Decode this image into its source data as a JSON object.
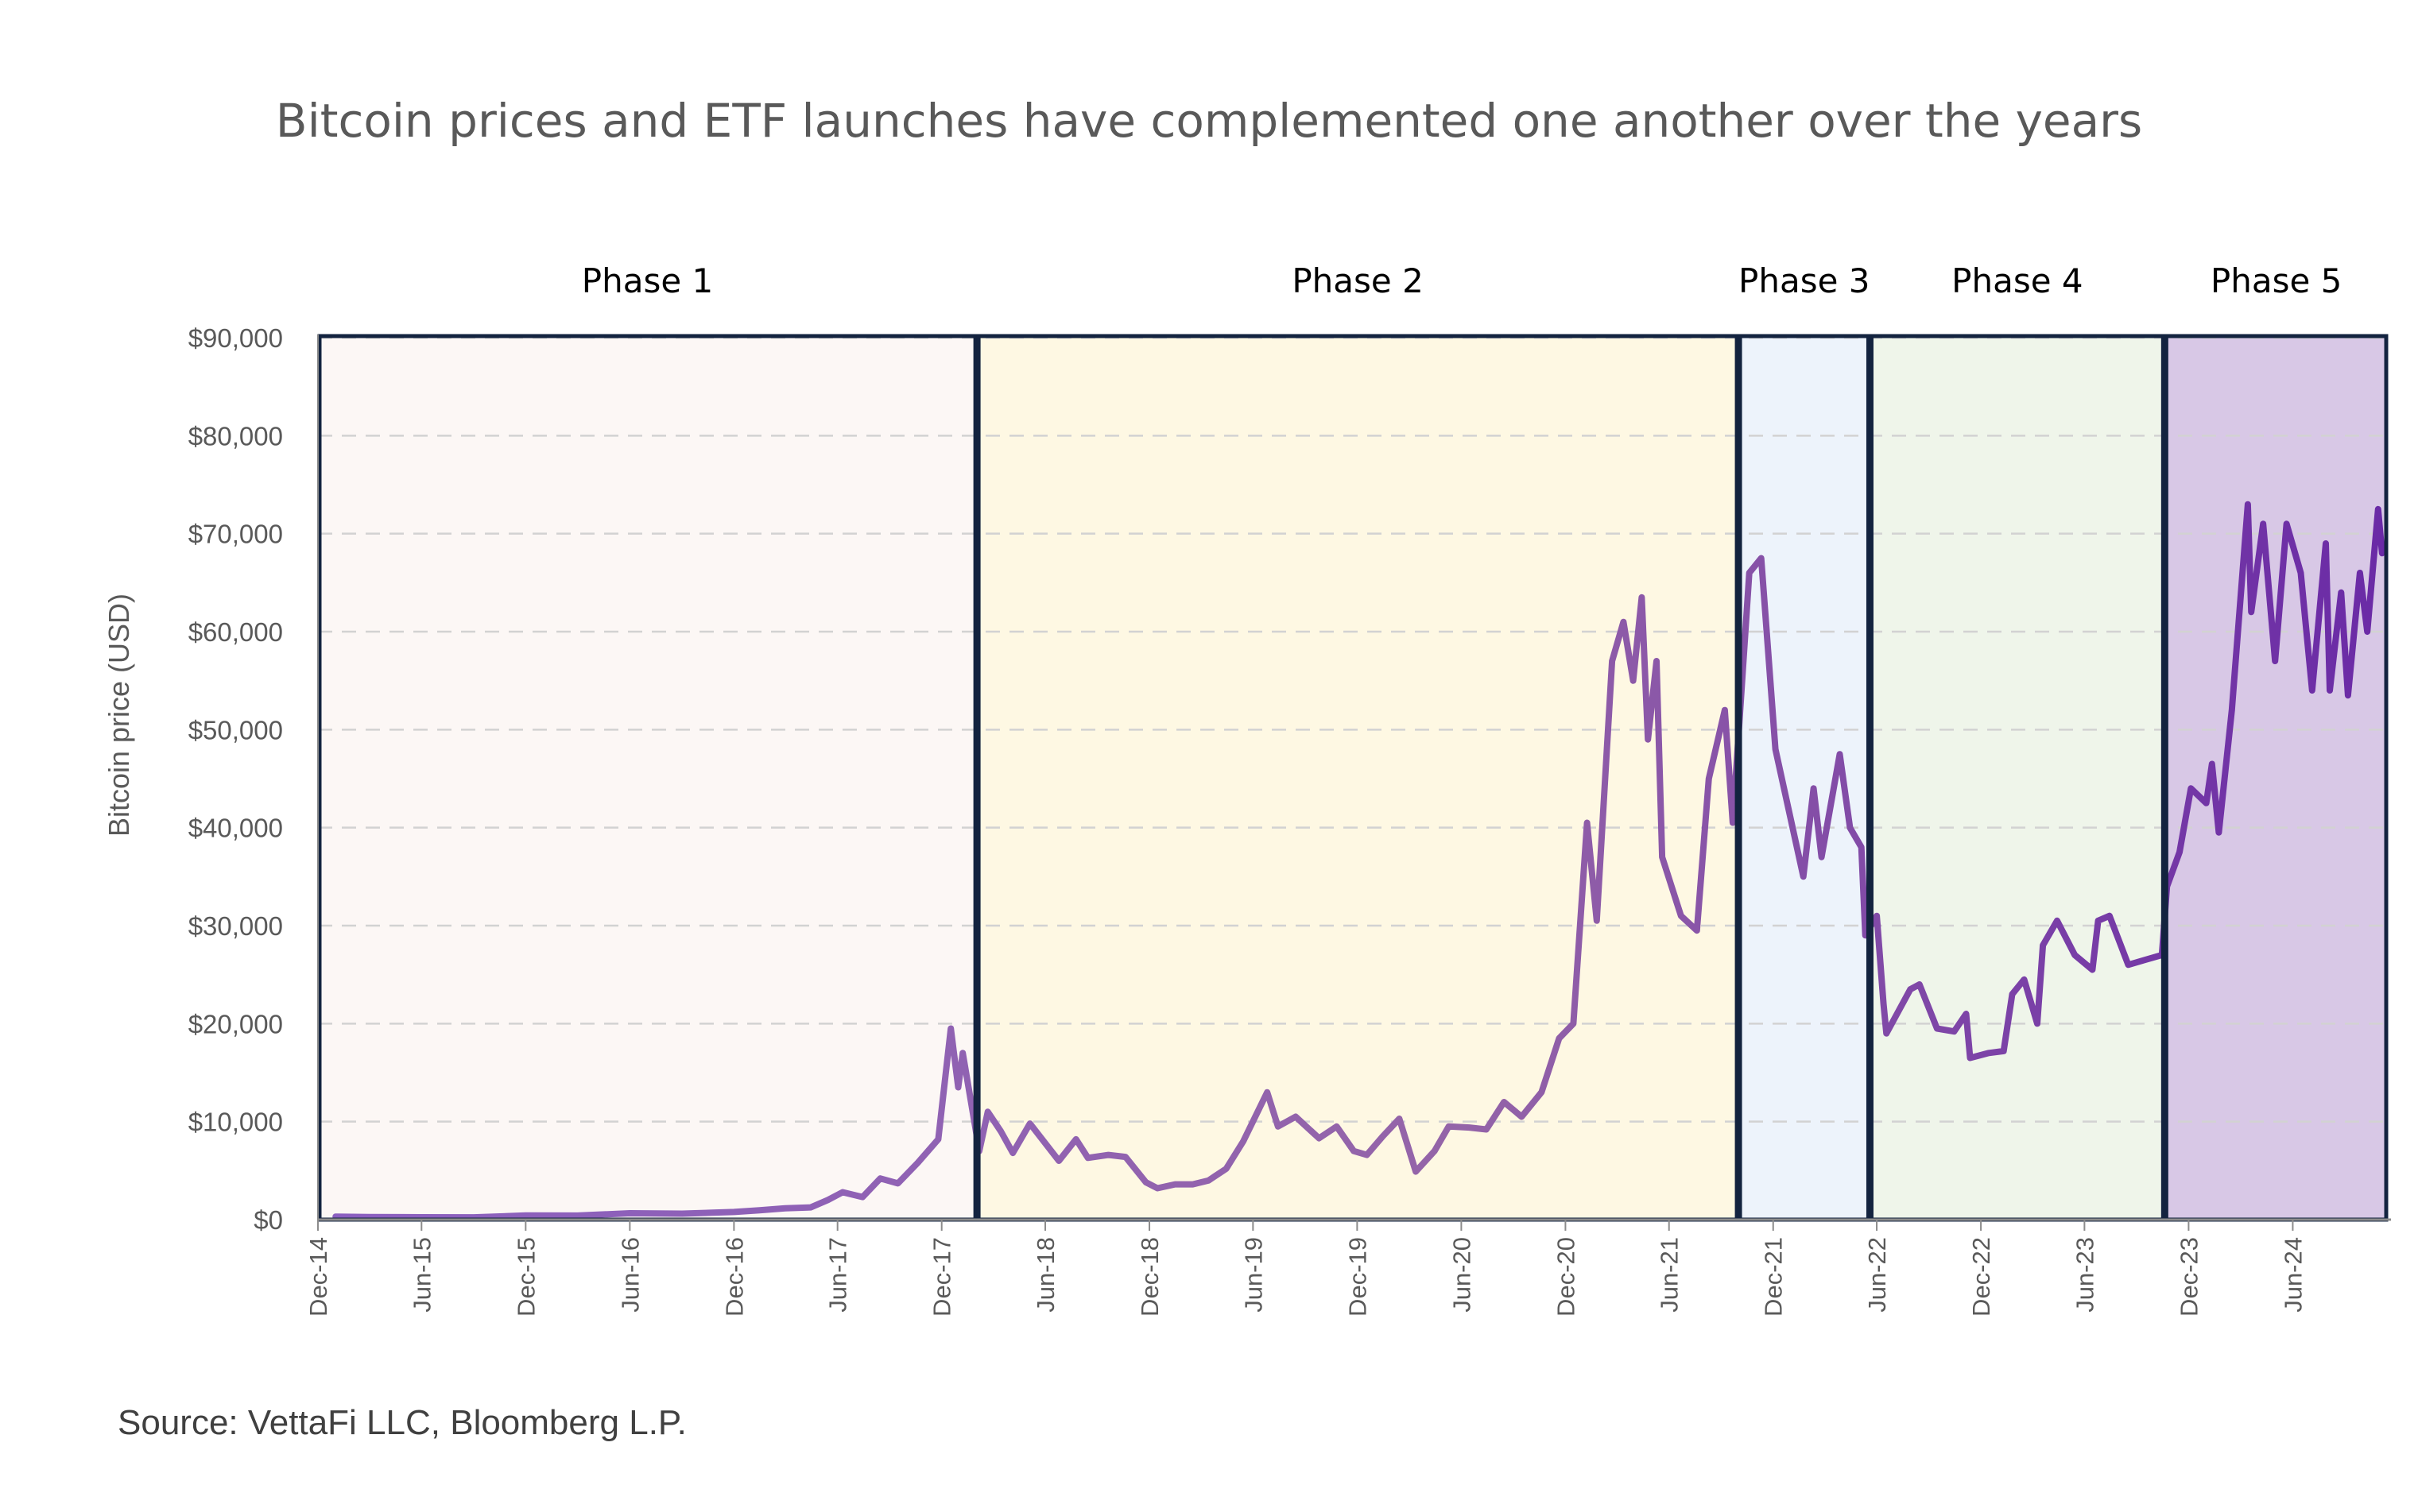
{
  "chart_data": {
    "type": "line",
    "title": "Bitcoin prices and ETF launches have complemented one another over the years",
    "ylabel": "Bitcoin price (USD)",
    "xlabel": "",
    "source": "Source: VettaFi LLC, Bloomberg L.P.",
    "ylim": [
      0,
      90000
    ],
    "xlim": [
      "2014-12-01",
      "2024-11-15"
    ],
    "grid": "horizontal-dashed",
    "y_ticks": [
      "$0",
      "$10,000",
      "$20,000",
      "$30,000",
      "$40,000",
      "$50,000",
      "$60,000",
      "$70,000",
      "$80,000",
      "$90,000"
    ],
    "x_ticks": [
      {
        "date": "2014-12-01",
        "label": "Dec-14"
      },
      {
        "date": "2015-06-01",
        "label": "Jun-15"
      },
      {
        "date": "2015-12-01",
        "label": "Dec-15"
      },
      {
        "date": "2016-06-01",
        "label": "Jun-16"
      },
      {
        "date": "2016-12-01",
        "label": "Dec-16"
      },
      {
        "date": "2017-06-01",
        "label": "Jun-17"
      },
      {
        "date": "2017-12-01",
        "label": "Dec-17"
      },
      {
        "date": "2018-06-01",
        "label": "Jun-18"
      },
      {
        "date": "2018-12-01",
        "label": "Dec-18"
      },
      {
        "date": "2019-06-01",
        "label": "Jun-19"
      },
      {
        "date": "2019-12-01",
        "label": "Dec-19"
      },
      {
        "date": "2020-06-01",
        "label": "Jun-20"
      },
      {
        "date": "2020-12-01",
        "label": "Dec-20"
      },
      {
        "date": "2021-06-01",
        "label": "Jun-21"
      },
      {
        "date": "2021-12-01",
        "label": "Dec-21"
      },
      {
        "date": "2022-06-01",
        "label": "Jun-22"
      },
      {
        "date": "2022-12-01",
        "label": "Dec-22"
      },
      {
        "date": "2023-06-01",
        "label": "Jun-23"
      },
      {
        "date": "2023-12-01",
        "label": "Dec-23"
      },
      {
        "date": "2024-06-01",
        "label": "Jun-24"
      }
    ],
    "phases": [
      {
        "label": "Phase 1",
        "start": "2014-12-01",
        "end": "2018-02-01",
        "color": "#fcf7f5"
      },
      {
        "label": "Phase 2",
        "start": "2018-02-01",
        "end": "2021-10-01",
        "color": "#fef8e3"
      },
      {
        "label": "Phase 3",
        "start": "2021-10-01",
        "end": "2022-05-20",
        "color": "#edf3fb"
      },
      {
        "label": "Phase 4",
        "start": "2022-05-20",
        "end": "2023-10-20",
        "color": "#eff5ea"
      },
      {
        "label": "Phase 5",
        "start": "2023-10-20",
        "end": "2024-11-15",
        "color": "#d8c8e6"
      }
    ],
    "series": [
      {
        "color_start": "#8b5fc0",
        "color_mid": "#9464a8",
        "color_end": "#6a2aa6",
        "points": [
          [
            "2015-01-01",
            310
          ],
          [
            "2015-03-01",
            260
          ],
          [
            "2015-06-01",
            240
          ],
          [
            "2015-09-01",
            235
          ],
          [
            "2015-12-01",
            420
          ],
          [
            "2016-03-01",
            415
          ],
          [
            "2016-06-01",
            650
          ],
          [
            "2016-09-01",
            610
          ],
          [
            "2016-12-01",
            780
          ],
          [
            "2017-01-15",
            950
          ],
          [
            "2017-03-01",
            1150
          ],
          [
            "2017-04-15",
            1250
          ],
          [
            "2017-05-15",
            2000
          ],
          [
            "2017-06-10",
            2800
          ],
          [
            "2017-07-15",
            2300
          ],
          [
            "2017-08-15",
            4200
          ],
          [
            "2017-09-15",
            3700
          ],
          [
            "2017-10-20",
            5800
          ],
          [
            "2017-11-25",
            8200
          ],
          [
            "2017-12-17",
            19500
          ],
          [
            "2017-12-30",
            13500
          ],
          [
            "2018-01-07",
            17000
          ],
          [
            "2018-02-05",
            7000
          ],
          [
            "2018-02-20",
            11000
          ],
          [
            "2018-03-15",
            9000
          ],
          [
            "2018-04-05",
            6800
          ],
          [
            "2018-05-05",
            9800
          ],
          [
            "2018-06-25",
            6000
          ],
          [
            "2018-07-25",
            8200
          ],
          [
            "2018-08-15",
            6300
          ],
          [
            "2018-09-20",
            6600
          ],
          [
            "2018-10-20",
            6400
          ],
          [
            "2018-11-25",
            3800
          ],
          [
            "2018-12-15",
            3200
          ],
          [
            "2019-01-15",
            3600
          ],
          [
            "2019-02-15",
            3600
          ],
          [
            "2019-03-15",
            4000
          ],
          [
            "2019-04-15",
            5200
          ],
          [
            "2019-05-15",
            8000
          ],
          [
            "2019-06-26",
            13000
          ],
          [
            "2019-07-15",
            9500
          ],
          [
            "2019-08-15",
            10500
          ],
          [
            "2019-09-25",
            8300
          ],
          [
            "2019-10-26",
            9500
          ],
          [
            "2019-11-25",
            7000
          ],
          [
            "2019-12-18",
            6600
          ],
          [
            "2020-01-15",
            8500
          ],
          [
            "2020-02-13",
            10300
          ],
          [
            "2020-03-13",
            4900
          ],
          [
            "2020-04-15",
            7000
          ],
          [
            "2020-05-10",
            9500
          ],
          [
            "2020-06-15",
            9400
          ],
          [
            "2020-07-15",
            9200
          ],
          [
            "2020-08-15",
            12000
          ],
          [
            "2020-09-15",
            10500
          ],
          [
            "2020-10-20",
            13000
          ],
          [
            "2020-11-20",
            18500
          ],
          [
            "2020-12-15",
            20000
          ],
          [
            "2021-01-08",
            40500
          ],
          [
            "2021-01-25",
            30500
          ],
          [
            "2021-02-21",
            57000
          ],
          [
            "2021-03-13",
            61000
          ],
          [
            "2021-03-30",
            55000
          ],
          [
            "2021-04-14",
            63500
          ],
          [
            "2021-04-25",
            49000
          ],
          [
            "2021-05-10",
            57000
          ],
          [
            "2021-05-20",
            37000
          ],
          [
            "2021-06-22",
            31000
          ],
          [
            "2021-07-20",
            29500
          ],
          [
            "2021-08-10",
            45000
          ],
          [
            "2021-09-07",
            52000
          ],
          [
            "2021-09-21",
            40500
          ],
          [
            "2021-10-20",
            66000
          ],
          [
            "2021-11-10",
            67500
          ],
          [
            "2021-12-05",
            48000
          ],
          [
            "2022-01-23",
            35000
          ],
          [
            "2022-02-10",
            44000
          ],
          [
            "2022-02-24",
            37000
          ],
          [
            "2022-03-28",
            47500
          ],
          [
            "2022-04-15",
            40000
          ],
          [
            "2022-05-05",
            38000
          ],
          [
            "2022-05-12",
            29000
          ],
          [
            "2022-06-01",
            31000
          ],
          [
            "2022-06-13",
            22000
          ],
          [
            "2022-06-18",
            19000
          ],
          [
            "2022-07-30",
            23500
          ],
          [
            "2022-08-15",
            24000
          ],
          [
            "2022-09-15",
            19500
          ],
          [
            "2022-10-15",
            19200
          ],
          [
            "2022-11-05",
            21000
          ],
          [
            "2022-11-12",
            16500
          ],
          [
            "2022-12-15",
            17000
          ],
          [
            "2023-01-10",
            17200
          ],
          [
            "2023-01-25",
            23000
          ],
          [
            "2023-02-15",
            24500
          ],
          [
            "2023-03-10",
            20000
          ],
          [
            "2023-03-20",
            28000
          ],
          [
            "2023-04-14",
            30500
          ],
          [
            "2023-05-15",
            27000
          ],
          [
            "2023-06-15",
            25500
          ],
          [
            "2023-06-25",
            30500
          ],
          [
            "2023-07-15",
            31000
          ],
          [
            "2023-08-17",
            26000
          ],
          [
            "2023-09-15",
            26500
          ],
          [
            "2023-10-15",
            27000
          ],
          [
            "2023-10-24",
            34000
          ],
          [
            "2023-11-15",
            37500
          ],
          [
            "2023-12-05",
            44000
          ],
          [
            "2024-01-01",
            42500
          ],
          [
            "2024-01-11",
            46500
          ],
          [
            "2024-01-23",
            39500
          ],
          [
            "2024-02-15",
            52000
          ],
          [
            "2024-03-14",
            73000
          ],
          [
            "2024-03-20",
            62000
          ],
          [
            "2024-04-10",
            71000
          ],
          [
            "2024-05-01",
            57000
          ],
          [
            "2024-05-21",
            71000
          ],
          [
            "2024-06-15",
            66000
          ],
          [
            "2024-07-05",
            54000
          ],
          [
            "2024-07-29",
            69000
          ],
          [
            "2024-08-05",
            54000
          ],
          [
            "2024-08-25",
            64000
          ],
          [
            "2024-09-06",
            53500
          ],
          [
            "2024-09-27",
            66000
          ],
          [
            "2024-10-10",
            60000
          ],
          [
            "2024-10-29",
            72500
          ],
          [
            "2024-11-05",
            68000
          ]
        ]
      }
    ]
  }
}
